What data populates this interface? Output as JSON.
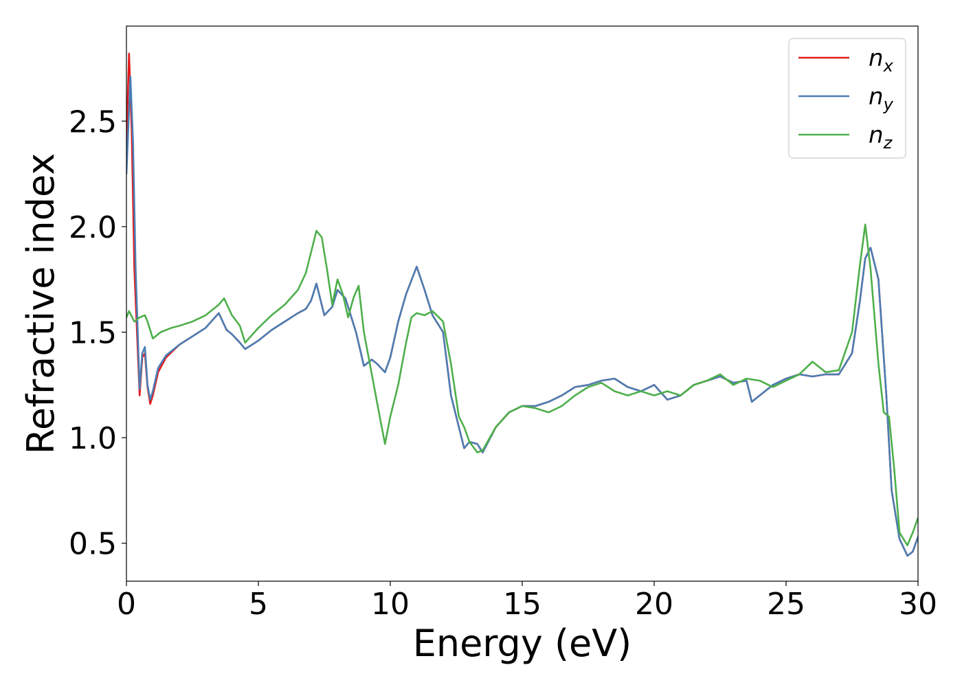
{
  "chart_data": {
    "type": "line",
    "xlabel": "Energy (eV)",
    "ylabel": "Refractive index",
    "xlim": [
      0,
      30
    ],
    "ylim": [
      0.32,
      2.95
    ],
    "xticks": [
      0,
      5,
      10,
      15,
      20,
      25,
      30
    ],
    "xtick_labels": [
      "0",
      "5",
      "10",
      "15",
      "20",
      "25",
      "30"
    ],
    "yticks": [
      0.5,
      1.0,
      1.5,
      2.0,
      2.5
    ],
    "ytick_labels": [
      "0.5",
      "1.0",
      "1.5",
      "2.0",
      "2.5"
    ],
    "grid": false,
    "legend_position": "top-right",
    "series": [
      {
        "name": "n_x",
        "legend_base": "n",
        "legend_sub": "x",
        "color": "#e41a1c",
        "x": [
          0,
          0.1,
          0.2,
          0.3,
          0.5,
          0.6,
          0.7,
          0.8,
          0.9,
          1.0,
          1.2,
          1.5,
          2.0,
          2.5,
          3.0,
          3.5,
          3.8,
          4.0,
          4.3,
          4.5,
          5.0,
          5.5,
          6.0,
          6.5,
          6.8,
          7.0,
          7.2,
          7.5,
          7.8,
          8.0,
          8.3,
          8.7,
          9.0,
          9.3,
          9.5,
          9.8,
          10.0,
          10.3,
          10.6,
          11.0,
          11.3,
          11.6,
          12.0,
          12.3,
          12.6,
          12.8,
          13.0,
          13.3,
          13.5,
          14.0,
          14.5,
          15.0,
          15.5,
          16.0,
          16.5,
          17.0,
          17.5,
          18.0,
          18.5,
          19.0,
          19.5,
          20.0,
          20.5,
          21.0,
          21.5,
          22.0,
          22.5,
          23.0,
          23.5,
          23.7,
          24.0,
          24.5,
          25.0,
          25.5,
          26.0,
          26.5,
          27.0,
          27.5,
          27.8,
          28.0,
          28.2,
          28.5,
          28.8,
          29.0,
          29.3,
          29.6,
          29.8,
          30.0
        ],
        "y": [
          2.4,
          2.82,
          2.45,
          1.8,
          1.2,
          1.38,
          1.4,
          1.24,
          1.16,
          1.2,
          1.31,
          1.38,
          1.44,
          1.48,
          1.52,
          1.59,
          1.51,
          1.49,
          1.45,
          1.42,
          1.46,
          1.51,
          1.55,
          1.59,
          1.61,
          1.65,
          1.73,
          1.58,
          1.62,
          1.7,
          1.66,
          1.5,
          1.34,
          1.37,
          1.35,
          1.31,
          1.38,
          1.55,
          1.68,
          1.81,
          1.7,
          1.58,
          1.5,
          1.2,
          1.05,
          0.95,
          0.98,
          0.97,
          0.93,
          1.05,
          1.12,
          1.15,
          1.15,
          1.17,
          1.2,
          1.24,
          1.25,
          1.27,
          1.28,
          1.24,
          1.22,
          1.25,
          1.18,
          1.2,
          1.25,
          1.27,
          1.29,
          1.26,
          1.27,
          1.17,
          1.2,
          1.25,
          1.28,
          1.3,
          1.29,
          1.3,
          1.3,
          1.4,
          1.65,
          1.85,
          1.9,
          1.75,
          1.2,
          0.75,
          0.52,
          0.44,
          0.46,
          0.53
        ]
      },
      {
        "name": "n_y",
        "legend_base": "n",
        "legend_sub": "y",
        "color": "#4a7eb4",
        "x": [
          0,
          0.15,
          0.25,
          0.35,
          0.5,
          0.6,
          0.7,
          0.8,
          0.9,
          1.0,
          1.2,
          1.5,
          2.0,
          2.5,
          3.0,
          3.5,
          3.8,
          4.0,
          4.3,
          4.5,
          5.0,
          5.5,
          6.0,
          6.5,
          6.8,
          7.0,
          7.2,
          7.5,
          7.8,
          8.0,
          8.3,
          8.7,
          9.0,
          9.3,
          9.5,
          9.8,
          10.0,
          10.3,
          10.6,
          11.0,
          11.3,
          11.6,
          12.0,
          12.3,
          12.6,
          12.8,
          13.0,
          13.3,
          13.5,
          14.0,
          14.5,
          15.0,
          15.5,
          16.0,
          16.5,
          17.0,
          17.5,
          18.0,
          18.5,
          19.0,
          19.5,
          20.0,
          20.5,
          21.0,
          21.5,
          22.0,
          22.5,
          23.0,
          23.5,
          23.7,
          24.0,
          24.5,
          25.0,
          25.5,
          26.0,
          26.5,
          27.0,
          27.5,
          27.8,
          28.0,
          28.2,
          28.5,
          28.8,
          29.0,
          29.3,
          29.6,
          29.8,
          30.0
        ],
        "y": [
          2.25,
          2.71,
          2.4,
          1.8,
          1.23,
          1.4,
          1.43,
          1.25,
          1.18,
          1.22,
          1.33,
          1.39,
          1.44,
          1.48,
          1.52,
          1.59,
          1.51,
          1.49,
          1.45,
          1.42,
          1.46,
          1.51,
          1.55,
          1.59,
          1.61,
          1.65,
          1.73,
          1.58,
          1.62,
          1.7,
          1.66,
          1.5,
          1.34,
          1.37,
          1.35,
          1.31,
          1.38,
          1.55,
          1.68,
          1.81,
          1.7,
          1.58,
          1.5,
          1.2,
          1.05,
          0.95,
          0.98,
          0.97,
          0.93,
          1.05,
          1.12,
          1.15,
          1.15,
          1.17,
          1.2,
          1.24,
          1.25,
          1.27,
          1.28,
          1.24,
          1.22,
          1.25,
          1.18,
          1.2,
          1.25,
          1.27,
          1.29,
          1.26,
          1.27,
          1.17,
          1.2,
          1.25,
          1.28,
          1.3,
          1.29,
          1.3,
          1.3,
          1.4,
          1.65,
          1.85,
          1.9,
          1.75,
          1.2,
          0.75,
          0.52,
          0.44,
          0.46,
          0.53
        ]
      },
      {
        "name": "n_z",
        "legend_base": "n",
        "legend_sub": "z",
        "color": "#4daf4a",
        "x": [
          0,
          0.1,
          0.3,
          0.5,
          0.7,
          0.8,
          1.0,
          1.3,
          1.7,
          2.0,
          2.5,
          3.0,
          3.5,
          3.7,
          4.0,
          4.3,
          4.5,
          5.0,
          5.5,
          6.0,
          6.5,
          6.8,
          7.0,
          7.2,
          7.4,
          7.6,
          7.8,
          8.0,
          8.2,
          8.4,
          8.6,
          8.8,
          9.0,
          9.3,
          9.6,
          9.8,
          10.0,
          10.3,
          10.6,
          10.8,
          11.0,
          11.3,
          11.6,
          12.0,
          12.3,
          12.6,
          12.8,
          13.0,
          13.3,
          13.5,
          14.0,
          14.5,
          15.0,
          15.5,
          16.0,
          16.5,
          17.0,
          17.5,
          18.0,
          18.5,
          19.0,
          19.5,
          20.0,
          20.5,
          21.0,
          21.5,
          22.0,
          22.5,
          23.0,
          23.5,
          24.0,
          24.5,
          25.0,
          25.5,
          26.0,
          26.5,
          27.0,
          27.5,
          27.8,
          28.0,
          28.2,
          28.5,
          28.7,
          28.9,
          29.1,
          29.3,
          29.6,
          29.8,
          30.0
        ],
        "y": [
          1.57,
          1.6,
          1.55,
          1.57,
          1.58,
          1.55,
          1.47,
          1.5,
          1.52,
          1.53,
          1.55,
          1.58,
          1.63,
          1.66,
          1.58,
          1.53,
          1.45,
          1.52,
          1.58,
          1.63,
          1.7,
          1.78,
          1.88,
          1.98,
          1.95,
          1.8,
          1.63,
          1.75,
          1.68,
          1.57,
          1.66,
          1.72,
          1.5,
          1.3,
          1.1,
          0.97,
          1.1,
          1.25,
          1.45,
          1.57,
          1.59,
          1.58,
          1.6,
          1.55,
          1.35,
          1.1,
          1.05,
          0.98,
          0.93,
          0.94,
          1.05,
          1.12,
          1.15,
          1.14,
          1.12,
          1.15,
          1.2,
          1.24,
          1.26,
          1.22,
          1.2,
          1.22,
          1.2,
          1.22,
          1.2,
          1.25,
          1.27,
          1.3,
          1.25,
          1.28,
          1.27,
          1.24,
          1.27,
          1.3,
          1.36,
          1.31,
          1.32,
          1.5,
          1.82,
          2.01,
          1.8,
          1.35,
          1.12,
          1.1,
          0.85,
          0.55,
          0.49,
          0.55,
          0.62
        ]
      }
    ]
  }
}
